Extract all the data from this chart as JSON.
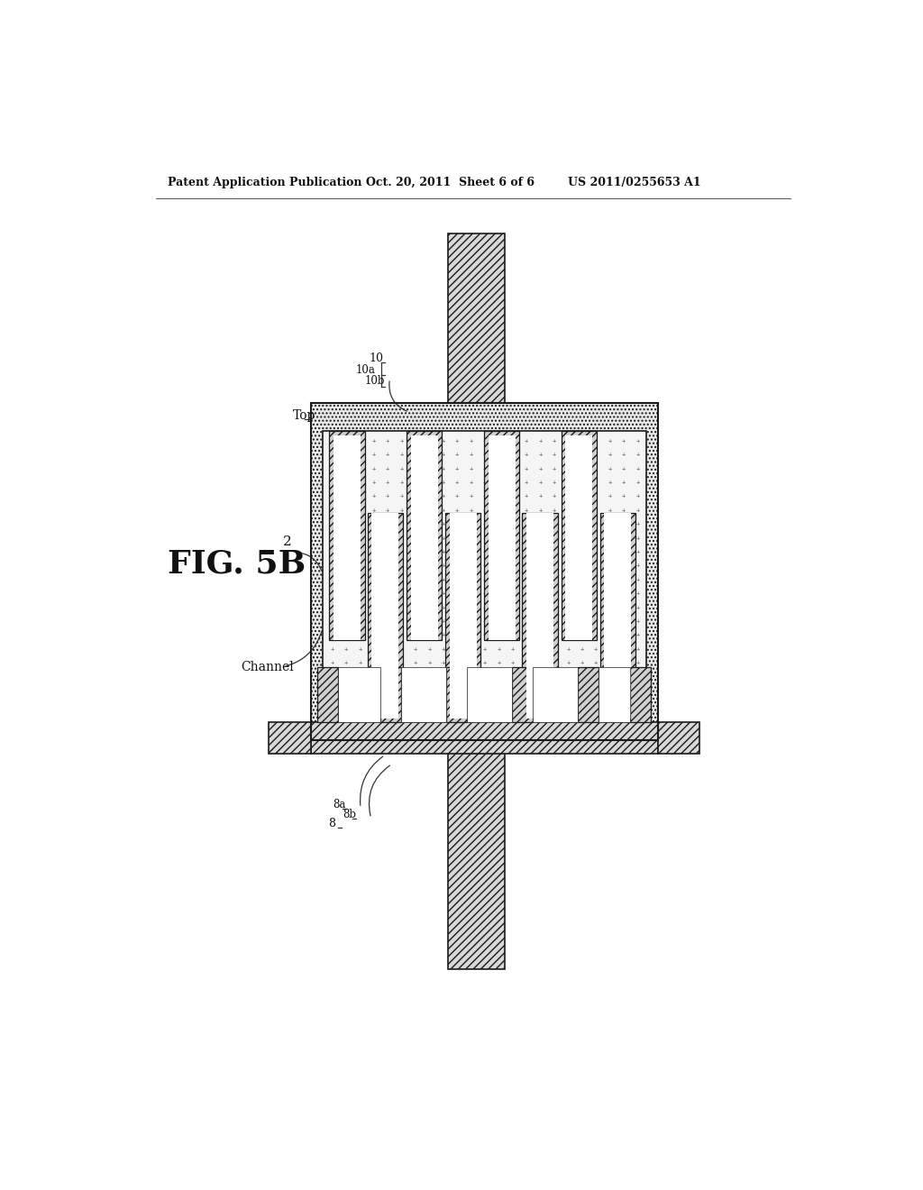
{
  "header_left": "Patent Application Publication",
  "header_center": "Oct. 20, 2011  Sheet 6 of 6",
  "header_right": "US 2011/0255653 A1",
  "fig_label": "FIG. 5B",
  "label_2": "2",
  "label_10": "10",
  "label_10a": "10a",
  "label_10b": "10b",
  "label_8": "8",
  "label_8a": "8a",
  "label_8b": "8b",
  "label_top": "Top",
  "label_channel": "Channel",
  "bg_color": "#ffffff"
}
